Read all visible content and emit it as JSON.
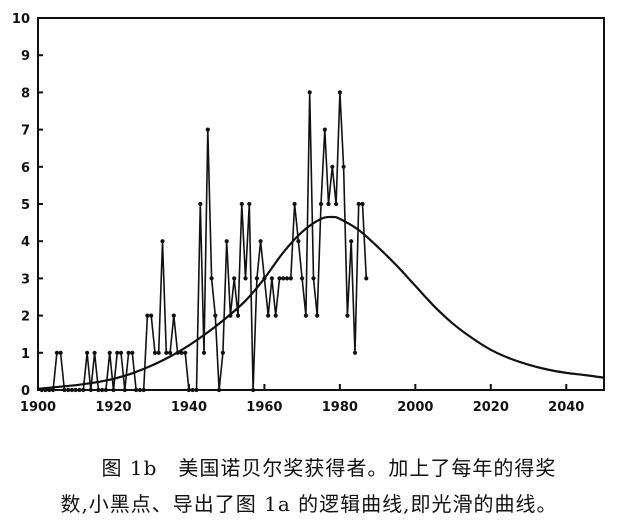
{
  "chart_data": {
    "type": "line",
    "title": "",
    "xlabel": "",
    "ylabel": "",
    "xlim": [
      1900,
      2050
    ],
    "ylim": [
      0,
      10
    ],
    "x_ticks": [
      1900,
      1920,
      1940,
      1960,
      1980,
      2000,
      2020,
      2040
    ],
    "y_ticks": [
      0,
      1,
      2,
      3,
      4,
      5,
      6,
      7,
      8,
      9,
      10
    ],
    "grid": false,
    "legend": "none",
    "series": [
      {
        "style": "markers-connected",
        "color": "#111111",
        "points": [
          [
            1901,
            0
          ],
          [
            1902,
            0
          ],
          [
            1903,
            0
          ],
          [
            1904,
            0
          ],
          [
            1905,
            1
          ],
          [
            1906,
            1
          ],
          [
            1907,
            0
          ],
          [
            1908,
            0
          ],
          [
            1909,
            0
          ],
          [
            1910,
            0
          ],
          [
            1911,
            0
          ],
          [
            1912,
            0
          ],
          [
            1913,
            1
          ],
          [
            1914,
            0
          ],
          [
            1915,
            1
          ],
          [
            1916,
            0
          ],
          [
            1917,
            0
          ],
          [
            1918,
            0
          ],
          [
            1919,
            1
          ],
          [
            1920,
            0
          ],
          [
            1921,
            1
          ],
          [
            1922,
            1
          ],
          [
            1923,
            0
          ],
          [
            1924,
            1
          ],
          [
            1925,
            1
          ],
          [
            1926,
            0
          ],
          [
            1927,
            0
          ],
          [
            1928,
            0
          ],
          [
            1929,
            2
          ],
          [
            1930,
            2
          ],
          [
            1931,
            1
          ],
          [
            1932,
            1
          ],
          [
            1933,
            4
          ],
          [
            1934,
            1
          ],
          [
            1935,
            1
          ],
          [
            1936,
            2
          ],
          [
            1937,
            1
          ],
          [
            1938,
            1
          ],
          [
            1939,
            1
          ],
          [
            1940,
            0
          ],
          [
            1941,
            0
          ],
          [
            1942,
            0
          ],
          [
            1943,
            5
          ],
          [
            1944,
            1
          ],
          [
            1945,
            7
          ],
          [
            1946,
            3
          ],
          [
            1947,
            2
          ],
          [
            1948,
            0
          ],
          [
            1949,
            1
          ],
          [
            1950,
            4
          ],
          [
            1951,
            2
          ],
          [
            1952,
            3
          ],
          [
            1953,
            2
          ],
          [
            1954,
            5
          ],
          [
            1955,
            3
          ],
          [
            1956,
            5
          ],
          [
            1957,
            0
          ],
          [
            1958,
            3
          ],
          [
            1959,
            4
          ],
          [
            1960,
            3
          ],
          [
            1961,
            2
          ],
          [
            1962,
            3
          ],
          [
            1963,
            2
          ],
          [
            1964,
            3
          ],
          [
            1965,
            3
          ],
          [
            1966,
            3
          ],
          [
            1967,
            3
          ],
          [
            1968,
            5
          ],
          [
            1969,
            4
          ],
          [
            1970,
            3
          ],
          [
            1971,
            2
          ],
          [
            1972,
            8
          ],
          [
            1973,
            3
          ],
          [
            1974,
            2
          ],
          [
            1975,
            5
          ],
          [
            1976,
            7
          ],
          [
            1977,
            5
          ],
          [
            1978,
            6
          ],
          [
            1979,
            5
          ],
          [
            1980,
            8
          ],
          [
            1981,
            6
          ],
          [
            1982,
            2
          ],
          [
            1983,
            4
          ],
          [
            1984,
            1
          ],
          [
            1985,
            5
          ],
          [
            1986,
            5
          ],
          [
            1987,
            3
          ]
        ]
      },
      {
        "style": "smooth-curve",
        "color": "#111111",
        "x": [
          1900,
          1905,
          1910,
          1915,
          1920,
          1925,
          1930,
          1935,
          1940,
          1945,
          1950,
          1955,
          1960,
          1965,
          1970,
          1975,
          1978,
          1980,
          1985,
          1990,
          1995,
          2000,
          2005,
          2010,
          2015,
          2020,
          2025,
          2030,
          2035,
          2040,
          2045,
          2050
        ],
        "y": [
          0.03,
          0.08,
          0.13,
          0.2,
          0.3,
          0.45,
          0.65,
          0.9,
          1.2,
          1.55,
          1.95,
          2.4,
          3.0,
          3.7,
          4.25,
          4.6,
          4.65,
          4.6,
          4.3,
          3.85,
          3.35,
          2.8,
          2.25,
          1.78,
          1.4,
          1.08,
          0.85,
          0.68,
          0.55,
          0.46,
          0.4,
          0.33
        ]
      }
    ]
  },
  "caption": {
    "line1": "图 1b　美国诺贝尔奖获得者。加上了每年的得奖",
    "line2": "数,小黑点、导出了图 1a 的逻辑曲线,即光滑的曲线。"
  }
}
